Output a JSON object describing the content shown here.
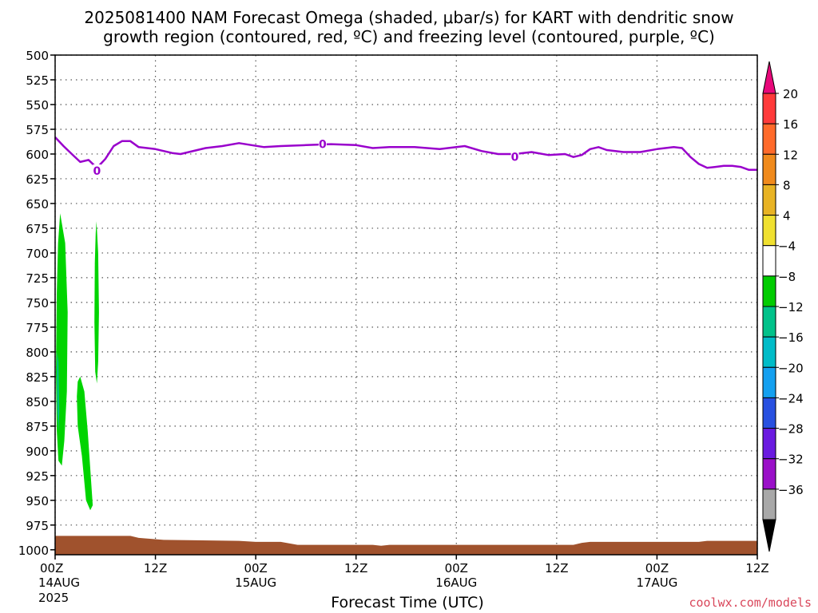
{
  "title": {
    "line1": "2025081400 NAM Forecast Omega (shaded, μbar/s) for KART with dendritic snow",
    "line2": "growth region (contoured, red, ºC) and freezing level (contoured, purple, ºC)"
  },
  "xlabel": "Forecast Time (UTC)",
  "credit": "coolwx.com/models",
  "year": "2025",
  "chart_data": {
    "type": "time-height",
    "y_axis": {
      "label": "",
      "ticks": [
        500,
        525,
        550,
        575,
        600,
        625,
        650,
        675,
        700,
        725,
        750,
        775,
        800,
        825,
        850,
        875,
        900,
        925,
        950,
        975,
        1000
      ],
      "range": [
        500,
        1005
      ],
      "inverted": true
    },
    "x_axis": {
      "range_hours": [
        0,
        84
      ],
      "ticks": [
        {
          "hour": 0,
          "label": "00Z",
          "date": "14AUG"
        },
        {
          "hour": 12,
          "label": "12Z",
          "date": ""
        },
        {
          "hour": 24,
          "label": "00Z",
          "date": "15AUG"
        },
        {
          "hour": 36,
          "label": "12Z",
          "date": ""
        },
        {
          "hour": 48,
          "label": "00Z",
          "date": "16AUG"
        },
        {
          "hour": 60,
          "label": "12Z",
          "date": ""
        },
        {
          "hour": 72,
          "label": "00Z",
          "date": "17AUG"
        },
        {
          "hour": 84,
          "label": "12Z",
          "date": ""
        }
      ]
    },
    "grid": true,
    "freezing_level": {
      "color": "#9900cc",
      "contour_label": "0",
      "label_points": [
        [
          5,
          617
        ],
        [
          32,
          590
        ],
        [
          55,
          603
        ]
      ],
      "points": [
        [
          0,
          583
        ],
        [
          1,
          592
        ],
        [
          2,
          600
        ],
        [
          3,
          608
        ],
        [
          4,
          606
        ],
        [
          5,
          614
        ],
        [
          6,
          605
        ],
        [
          7,
          592
        ],
        [
          8,
          587
        ],
        [
          9,
          587
        ],
        [
          10,
          593
        ],
        [
          12,
          595
        ],
        [
          14,
          599
        ],
        [
          15,
          600
        ],
        [
          16,
          598
        ],
        [
          18,
          594
        ],
        [
          20,
          592
        ],
        [
          22,
          589
        ],
        [
          25,
          593
        ],
        [
          27,
          592
        ],
        [
          30,
          591
        ],
        [
          33,
          590
        ],
        [
          36,
          591
        ],
        [
          38,
          594
        ],
        [
          40,
          593
        ],
        [
          43,
          593
        ],
        [
          46,
          595
        ],
        [
          48,
          593
        ],
        [
          49,
          592
        ],
        [
          51,
          597
        ],
        [
          53,
          600
        ],
        [
          55,
          600
        ],
        [
          57,
          598
        ],
        [
          59,
          601
        ],
        [
          61,
          600
        ],
        [
          62,
          603
        ],
        [
          63,
          601
        ],
        [
          64,
          595
        ],
        [
          65,
          593
        ],
        [
          66,
          596
        ],
        [
          68,
          598
        ],
        [
          70,
          598
        ],
        [
          72,
          595
        ],
        [
          74,
          593
        ],
        [
          75,
          594
        ],
        [
          76,
          603
        ],
        [
          77,
          610
        ],
        [
          78,
          614
        ],
        [
          79,
          613
        ],
        [
          80,
          612
        ],
        [
          81,
          612
        ],
        [
          82,
          613
        ],
        [
          83,
          616
        ],
        [
          84,
          616
        ]
      ]
    },
    "omega_shaded_regions": [
      {
        "name": "omega-region-1",
        "value_range": [
          -8,
          -4
        ],
        "color": "#00d400",
        "outline": [
          [
            0.6,
            660
          ],
          [
            1.2,
            690
          ],
          [
            1.5,
            760
          ],
          [
            1.4,
            840
          ],
          [
            1.1,
            890
          ],
          [
            0.8,
            915
          ],
          [
            0.4,
            910
          ],
          [
            0.2,
            880
          ],
          [
            0.1,
            820
          ],
          [
            0.2,
            740
          ],
          [
            0.35,
            690
          ]
        ]
      },
      {
        "name": "omega-region-1-core",
        "value_range": [
          -12,
          -8
        ],
        "color": "#00c08a",
        "outline": [
          [
            0.25,
            800
          ],
          [
            0.4,
            810
          ],
          [
            0.5,
            860
          ],
          [
            0.4,
            880
          ],
          [
            0.25,
            860
          ],
          [
            0.2,
            820
          ]
        ]
      },
      {
        "name": "omega-region-2",
        "value_range": [
          -8,
          -4
        ],
        "color": "#00d400",
        "outline": [
          [
            3.0,
            825
          ],
          [
            3.5,
            840
          ],
          [
            3.9,
            880
          ],
          [
            4.3,
            930
          ],
          [
            4.5,
            955
          ],
          [
            4.2,
            960
          ],
          [
            3.7,
            950
          ],
          [
            3.2,
            905
          ],
          [
            2.7,
            875
          ],
          [
            2.6,
            845
          ],
          [
            2.7,
            830
          ]
        ]
      },
      {
        "name": "omega-region-3",
        "value_range": [
          -8,
          -4
        ],
        "color": "#00d400",
        "outline": [
          [
            4.95,
            668
          ],
          [
            5.15,
            700
          ],
          [
            5.25,
            760
          ],
          [
            5.15,
            810
          ],
          [
            5.0,
            832
          ],
          [
            4.8,
            820
          ],
          [
            4.7,
            770
          ],
          [
            4.75,
            710
          ],
          [
            4.85,
            680
          ]
        ]
      }
    ],
    "terrain": {
      "color": "#a0522d",
      "surface": [
        [
          0,
          986
        ],
        [
          9,
          986
        ],
        [
          10,
          988
        ],
        [
          13,
          990
        ],
        [
          22,
          991
        ],
        [
          24,
          992
        ],
        [
          27,
          992
        ],
        [
          29,
          995
        ],
        [
          38,
          995
        ],
        [
          39,
          996
        ],
        [
          40,
          995
        ],
        [
          62,
          995
        ],
        [
          63,
          993
        ],
        [
          64,
          992
        ],
        [
          77,
          992
        ],
        [
          78,
          991
        ],
        [
          84,
          991
        ]
      ]
    },
    "colorbar": {
      "units": "μbar/s",
      "labels": [
        "20",
        "16",
        "12",
        "8",
        "4",
        "-4",
        "-8",
        "-12",
        "-16",
        "-20",
        "-24",
        "-28",
        "-32",
        "-36"
      ],
      "bins": [
        {
          "color": "#ff3a3a"
        },
        {
          "color": "#ff6a2a"
        },
        {
          "color": "#f08a1c"
        },
        {
          "color": "#e8b324"
        },
        {
          "color": "#f0e030"
        },
        {
          "color": "#ffffff"
        },
        {
          "color": "#00cc00"
        },
        {
          "color": "#00c28a"
        },
        {
          "color": "#00bcc8"
        },
        {
          "color": "#14a0f0"
        },
        {
          "color": "#2850e0"
        },
        {
          "color": "#6a1ae0"
        },
        {
          "color": "#9a10c8"
        },
        {
          "color": "#a8a8a8"
        }
      ],
      "top_arrow_color": "#e8087a",
      "bottom_arrow_color": "#000000"
    }
  }
}
